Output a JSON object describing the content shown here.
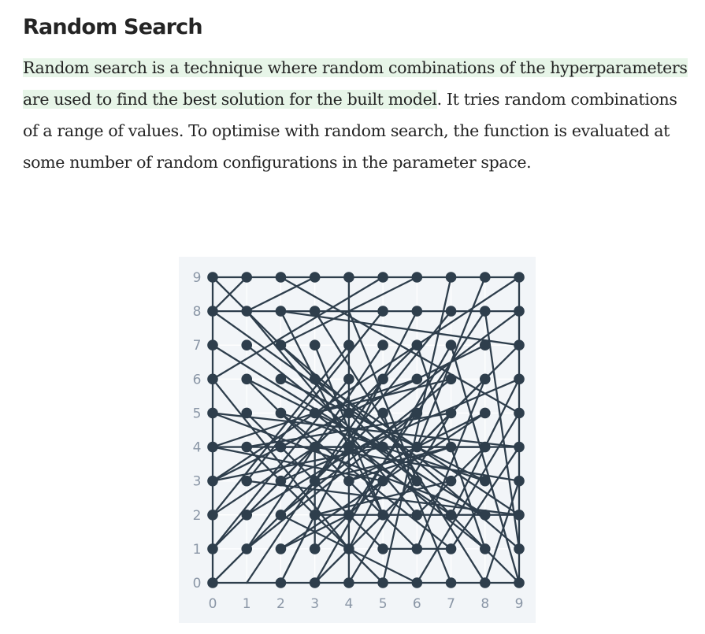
{
  "article": {
    "title": "Random Search",
    "paragraph_highlighted": "Random search is a technique where random combinations of the hyperparameters are used to find the best solution for the built model",
    "paragraph_rest": ". It tries random combinations of a range of values. To optimise with random search, the function is evaluated at some number of random configurations in the parameter space."
  },
  "colors": {
    "highlight": "#e7f5e8",
    "text": "#242424",
    "figure_background": "#f2f5f8",
    "mark": "#2e3e4c",
    "tick_label": "#8a96a6"
  },
  "chart_data": {
    "type": "scatter",
    "title": "",
    "xlabel": "",
    "ylabel": "",
    "xlim": [
      0,
      9
    ],
    "ylim": [
      0,
      9
    ],
    "x_ticks": [
      "0",
      "1",
      "2",
      "3",
      "4",
      "5",
      "6",
      "7",
      "8",
      "9"
    ],
    "y_ticks": [
      "0",
      "1",
      "2",
      "3",
      "4",
      "5",
      "6",
      "7",
      "8",
      "9"
    ],
    "grid": true,
    "border": true,
    "points": [
      [
        0,
        9
      ],
      [
        1,
        9
      ],
      [
        2,
        9
      ],
      [
        3,
        9
      ],
      [
        4,
        9
      ],
      [
        5,
        9
      ],
      [
        6,
        9
      ],
      [
        7,
        9
      ],
      [
        8,
        9
      ],
      [
        9,
        9
      ],
      [
        0,
        8
      ],
      [
        1,
        8
      ],
      [
        2,
        8
      ],
      [
        3,
        8
      ],
      [
        5,
        8
      ],
      [
        6,
        8
      ],
      [
        7,
        8
      ],
      [
        8,
        8
      ],
      [
        9,
        8
      ],
      [
        0,
        7
      ],
      [
        1,
        7
      ],
      [
        2,
        7
      ],
      [
        3,
        7
      ],
      [
        4,
        7
      ],
      [
        5,
        7
      ],
      [
        6,
        7
      ],
      [
        7,
        7
      ],
      [
        8,
        7
      ],
      [
        9,
        7
      ],
      [
        0,
        6
      ],
      [
        1,
        6
      ],
      [
        2,
        6
      ],
      [
        3,
        6
      ],
      [
        4,
        6
      ],
      [
        5,
        6
      ],
      [
        6,
        6
      ],
      [
        7,
        6
      ],
      [
        8,
        6
      ],
      [
        9,
        6
      ],
      [
        0,
        5
      ],
      [
        1,
        5
      ],
      [
        2,
        5
      ],
      [
        3,
        5
      ],
      [
        4,
        5
      ],
      [
        5,
        5
      ],
      [
        6,
        5
      ],
      [
        7,
        5
      ],
      [
        8,
        5
      ],
      [
        9,
        5
      ],
      [
        0,
        4
      ],
      [
        1,
        4
      ],
      [
        2,
        4
      ],
      [
        3,
        4
      ],
      [
        4,
        4
      ],
      [
        5,
        4
      ],
      [
        6,
        4
      ],
      [
        7,
        4
      ],
      [
        8,
        4
      ],
      [
        9,
        4
      ],
      [
        0,
        3
      ],
      [
        1,
        3
      ],
      [
        2,
        3
      ],
      [
        3,
        3
      ],
      [
        4,
        3
      ],
      [
        5,
        3
      ],
      [
        6,
        3
      ],
      [
        7,
        3
      ],
      [
        8,
        3
      ],
      [
        9,
        3
      ],
      [
        0,
        2
      ],
      [
        1,
        2
      ],
      [
        2,
        2
      ],
      [
        3,
        2
      ],
      [
        4,
        2
      ],
      [
        5,
        2
      ],
      [
        6,
        2
      ],
      [
        7,
        2
      ],
      [
        8,
        2
      ],
      [
        9,
        2
      ],
      [
        0,
        1
      ],
      [
        1,
        1
      ],
      [
        2,
        1
      ],
      [
        3,
        1
      ],
      [
        4,
        1
      ],
      [
        5,
        1
      ],
      [
        6,
        1
      ],
      [
        7,
        1
      ],
      [
        8,
        1
      ],
      [
        9,
        1
      ],
      [
        0,
        0
      ],
      [
        2,
        0
      ],
      [
        3,
        0
      ],
      [
        4,
        0
      ],
      [
        5,
        0
      ],
      [
        6,
        0
      ],
      [
        7,
        0
      ],
      [
        8,
        0
      ],
      [
        9,
        0
      ]
    ],
    "lines": [
      [
        [
          0,
          9
        ],
        [
          9,
          9
        ]
      ],
      [
        [
          0,
          8
        ],
        [
          9,
          8
        ]
      ],
      [
        [
          0,
          4
        ],
        [
          9,
          4
        ]
      ],
      [
        [
          1,
          3
        ],
        [
          9,
          2
        ]
      ],
      [
        [
          0,
          0
        ],
        [
          9,
          0
        ]
      ],
      [
        [
          0,
          9
        ],
        [
          0,
          0
        ]
      ],
      [
        [
          9,
          9
        ],
        [
          9,
          0
        ]
      ],
      [
        [
          4,
          9
        ],
        [
          4,
          0
        ]
      ],
      [
        [
          0,
          9
        ],
        [
          3,
          6
        ]
      ],
      [
        [
          1,
          9
        ],
        [
          0,
          8
        ]
      ],
      [
        [
          2,
          9
        ],
        [
          9,
          5
        ]
      ],
      [
        [
          3,
          9
        ],
        [
          1,
          8
        ]
      ],
      [
        [
          5,
          9
        ],
        [
          0,
          6
        ]
      ],
      [
        [
          6,
          9
        ],
        [
          2,
          7
        ]
      ],
      [
        [
          7,
          9
        ],
        [
          5,
          0
        ]
      ],
      [
        [
          8,
          9
        ],
        [
          6,
          4
        ]
      ],
      [
        [
          9,
          9
        ],
        [
          0,
          3
        ]
      ],
      [
        [
          0,
          8
        ],
        [
          7,
          3
        ]
      ],
      [
        [
          2,
          8
        ],
        [
          9,
          7
        ]
      ],
      [
        [
          3,
          8
        ],
        [
          8,
          0
        ]
      ],
      [
        [
          5,
          8
        ],
        [
          1,
          3
        ]
      ],
      [
        [
          6,
          8
        ],
        [
          2,
          0
        ]
      ],
      [
        [
          7,
          8
        ],
        [
          3,
          3
        ]
      ],
      [
        [
          8,
          8
        ],
        [
          4,
          2
        ]
      ],
      [
        [
          9,
          8
        ],
        [
          5,
          5
        ]
      ],
      [
        [
          0,
          7
        ],
        [
          8,
          2
        ]
      ],
      [
        [
          1,
          7
        ],
        [
          6,
          3
        ]
      ],
      [
        [
          2,
          7
        ],
        [
          9,
          1
        ]
      ],
      [
        [
          3,
          7
        ],
        [
          5,
          2
        ]
      ],
      [
        [
          4,
          7
        ],
        [
          0,
          2
        ]
      ],
      [
        [
          5,
          7
        ],
        [
          1,
          1
        ]
      ],
      [
        [
          6,
          7
        ],
        [
          2,
          3
        ]
      ],
      [
        [
          7,
          7
        ],
        [
          3,
          0
        ]
      ],
      [
        [
          8,
          7
        ],
        [
          4,
          5
        ]
      ],
      [
        [
          9,
          7
        ],
        [
          3,
          1
        ]
      ],
      [
        [
          0,
          6
        ],
        [
          4,
          1
        ]
      ],
      [
        [
          1,
          6
        ],
        [
          6,
          1
        ]
      ],
      [
        [
          2,
          6
        ],
        [
          8,
          3
        ]
      ],
      [
        [
          3,
          6
        ],
        [
          9,
          0
        ]
      ],
      [
        [
          4,
          6
        ],
        [
          0,
          1
        ]
      ],
      [
        [
          5,
          6
        ],
        [
          1,
          0
        ]
      ],
      [
        [
          6,
          6
        ],
        [
          2,
          4
        ]
      ],
      [
        [
          7,
          6
        ],
        [
          3,
          5
        ]
      ],
      [
        [
          8,
          6
        ],
        [
          5,
          3
        ]
      ],
      [
        [
          9,
          6
        ],
        [
          7,
          2
        ]
      ],
      [
        [
          0,
          5
        ],
        [
          9,
          4
        ]
      ],
      [
        [
          1,
          5
        ],
        [
          5,
          1
        ]
      ],
      [
        [
          2,
          5
        ],
        [
          7,
          1
        ]
      ],
      [
        [
          3,
          5
        ],
        [
          8,
          1
        ]
      ],
      [
        [
          4,
          5
        ],
        [
          0,
          3
        ]
      ],
      [
        [
          5,
          5
        ],
        [
          2,
          2
        ]
      ],
      [
        [
          6,
          5
        ],
        [
          1,
          2
        ]
      ],
      [
        [
          7,
          5
        ],
        [
          4,
          0
        ]
      ],
      [
        [
          8,
          5
        ],
        [
          2,
          1
        ]
      ],
      [
        [
          9,
          5
        ],
        [
          6,
          0
        ]
      ],
      [
        [
          0,
          4
        ],
        [
          6,
          6
        ]
      ],
      [
        [
          1,
          4
        ],
        [
          7,
          5
        ]
      ],
      [
        [
          2,
          4
        ],
        [
          8,
          4
        ]
      ],
      [
        [
          3,
          4
        ],
        [
          9,
          3
        ]
      ],
      [
        [
          5,
          4
        ],
        [
          1,
          6
        ]
      ],
      [
        [
          6,
          4
        ],
        [
          2,
          6
        ]
      ],
      [
        [
          7,
          4
        ],
        [
          4,
          3
        ]
      ],
      [
        [
          8,
          4
        ],
        [
          6,
          2
        ]
      ],
      [
        [
          0,
          3
        ],
        [
          5,
          4
        ]
      ],
      [
        [
          2,
          3
        ],
        [
          9,
          6
        ]
      ],
      [
        [
          3,
          3
        ],
        [
          7,
          4
        ]
      ],
      [
        [
          4,
          3
        ],
        [
          8,
          5
        ]
      ],
      [
        [
          5,
          3
        ],
        [
          0,
          4
        ]
      ],
      [
        [
          6,
          3
        ],
        [
          4,
          8
        ]
      ],
      [
        [
          7,
          3
        ],
        [
          3,
          2
        ]
      ],
      [
        [
          8,
          3
        ],
        [
          2,
          5
        ]
      ],
      [
        [
          0,
          2
        ],
        [
          3,
          4
        ]
      ],
      [
        [
          1,
          2
        ],
        [
          5,
          6
        ]
      ],
      [
        [
          2,
          2
        ],
        [
          7,
          6
        ]
      ],
      [
        [
          3,
          2
        ],
        [
          9,
          2
        ]
      ],
      [
        [
          5,
          2
        ],
        [
          2,
          8
        ]
      ],
      [
        [
          6,
          2
        ],
        [
          1,
          8
        ]
      ],
      [
        [
          7,
          2
        ],
        [
          4,
          4
        ]
      ],
      [
        [
          8,
          2
        ],
        [
          0,
          5
        ]
      ],
      [
        [
          9,
          2
        ],
        [
          3,
          6
        ]
      ],
      [
        [
          0,
          1
        ],
        [
          2,
          3
        ]
      ],
      [
        [
          1,
          1
        ],
        [
          6,
          5
        ]
      ],
      [
        [
          2,
          1
        ],
        [
          4,
          2
        ]
      ],
      [
        [
          3,
          1
        ],
        [
          3,
          4
        ]
      ],
      [
        [
          4,
          1
        ],
        [
          5,
          3
        ]
      ],
      [
        [
          5,
          1
        ],
        [
          7,
          1
        ]
      ],
      [
        [
          6,
          1
        ],
        [
          8,
          6
        ]
      ],
      [
        [
          7,
          1
        ],
        [
          9,
          4
        ]
      ],
      [
        [
          8,
          1
        ],
        [
          6,
          7
        ]
      ],
      [
        [
          9,
          1
        ],
        [
          8,
          8
        ]
      ],
      [
        [
          0,
          0
        ],
        [
          3,
          3
        ]
      ],
      [
        [
          2,
          0
        ],
        [
          4,
          4
        ]
      ],
      [
        [
          3,
          0
        ],
        [
          6,
          3
        ]
      ],
      [
        [
          5,
          0
        ],
        [
          1,
          4
        ]
      ],
      [
        [
          6,
          0
        ],
        [
          2,
          2
        ]
      ],
      [
        [
          7,
          0
        ],
        [
          5,
          5
        ]
      ],
      [
        [
          8,
          0
        ],
        [
          9,
          3
        ]
      ],
      [
        [
          9,
          0
        ],
        [
          7,
          7
        ]
      ]
    ]
  }
}
